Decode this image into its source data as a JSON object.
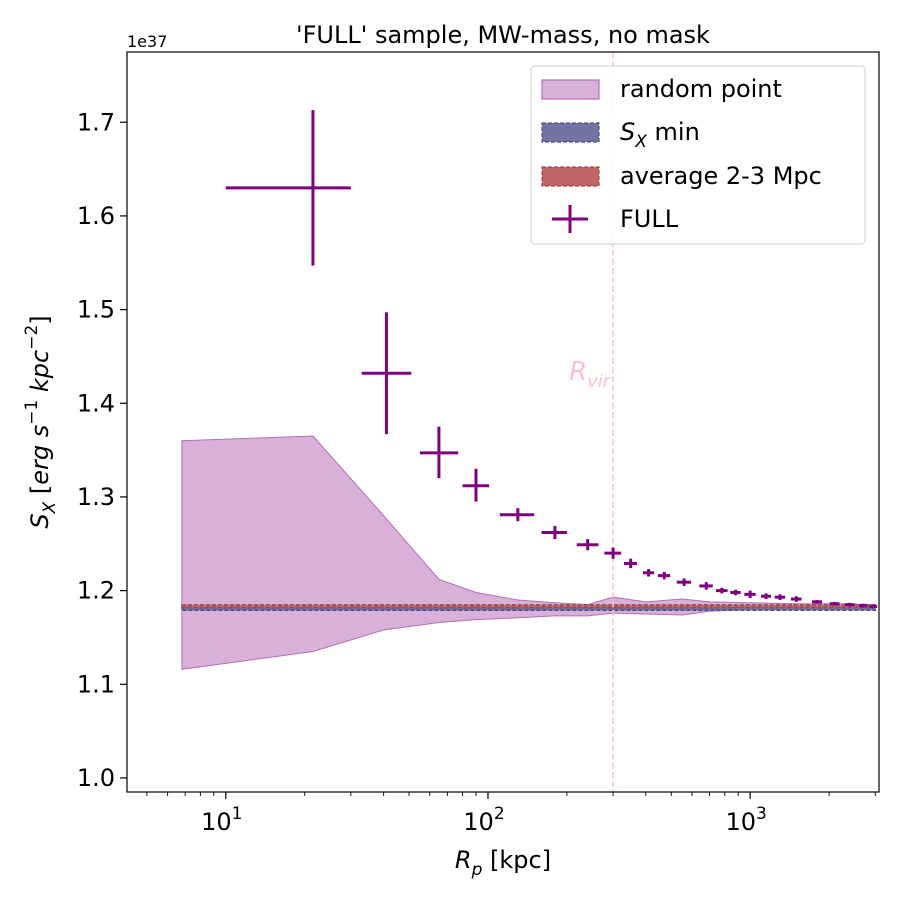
{
  "chart_data": {
    "type": "scatter",
    "title": "'FULL' sample, MW-mass, no mask",
    "xlabel": "R_p [kpc]",
    "ylabel": "S_X [erg s^-1 kpc^-2]",
    "x_scale": "log",
    "xlim": [
      4.2,
      3100
    ],
    "ylim": [
      0.985,
      1.775
    ],
    "y_offset_text": "1e37",
    "xticks": [
      {
        "value": 10,
        "base": "10",
        "exp": "1"
      },
      {
        "value": 100,
        "base": "10",
        "exp": "2"
      },
      {
        "value": 1000,
        "base": "10",
        "exp": "3"
      }
    ],
    "yticks": [
      {
        "value": 1.0,
        "label": "1.0"
      },
      {
        "value": 1.1,
        "label": "1.1"
      },
      {
        "value": 1.2,
        "label": "1.2"
      },
      {
        "value": 1.3,
        "label": "1.3"
      },
      {
        "value": 1.4,
        "label": "1.4"
      },
      {
        "value": 1.5,
        "label": "1.5"
      },
      {
        "value": 1.6,
        "label": "1.6"
      },
      {
        "value": 1.7,
        "label": "1.7"
      }
    ],
    "colors": {
      "full": "#800080",
      "random_fill": "#d8b0d8",
      "random_edge": "#b070b8",
      "sxmin_fill": "#7373a3",
      "sxmin_edge": "#4e4e86",
      "avg_fill": "#c06666",
      "avg_edge": "#a04848",
      "rvir": "#ffc0cb"
    },
    "legend": {
      "placement": "upper right",
      "entries": [
        {
          "kind": "band",
          "key": "random",
          "label": "random point"
        },
        {
          "kind": "band",
          "key": "sxmin",
          "label_var": "S",
          "label_sub": "X",
          "label_rest": " min"
        },
        {
          "kind": "band",
          "key": "avg",
          "label": "average 2-3 Mpc"
        },
        {
          "kind": "errorbar",
          "key": "full",
          "label": "FULL"
        }
      ]
    },
    "random_band": {
      "x": [
        6.8,
        21.5,
        40,
        65,
        90,
        130,
        180,
        240,
        300,
        400,
        550,
        700,
        1000,
        1500,
        2200,
        3000
      ],
      "lower": [
        1.116,
        1.135,
        1.158,
        1.166,
        1.169,
        1.171,
        1.173,
        1.173,
        1.176,
        1.175,
        1.174,
        1.178,
        1.18,
        1.18,
        1.181,
        1.181
      ],
      "upper": [
        1.36,
        1.365,
        1.28,
        1.212,
        1.198,
        1.19,
        1.187,
        1.185,
        1.193,
        1.188,
        1.191,
        1.188,
        1.187,
        1.186,
        1.186,
        1.185
      ]
    },
    "sxmin_band": {
      "x": [
        6.8,
        3000
      ],
      "lower": 1.179,
      "upper": 1.183
    },
    "avg_band": {
      "x": [
        6.8,
        3000
      ],
      "lower": 1.1818,
      "upper": 1.1848
    },
    "full_series": {
      "name": "FULL",
      "points": [
        {
          "x": 21.5,
          "y": 1.63,
          "xlo": 10.0,
          "xhi": 30.0,
          "ylo": 1.547,
          "yhi": 1.713
        },
        {
          "x": 41,
          "y": 1.432,
          "xlo": 33,
          "xhi": 51,
          "ylo": 1.367,
          "yhi": 1.497
        },
        {
          "x": 65,
          "y": 1.347,
          "xlo": 55,
          "xhi": 77,
          "ylo": 1.32,
          "yhi": 1.375
        },
        {
          "x": 90,
          "y": 1.312,
          "xlo": 80,
          "xhi": 101,
          "ylo": 1.295,
          "yhi": 1.33
        },
        {
          "x": 130,
          "y": 1.281,
          "xlo": 111,
          "xhi": 150,
          "ylo": 1.274,
          "yhi": 1.288
        },
        {
          "x": 180,
          "y": 1.262,
          "xlo": 160,
          "xhi": 200,
          "ylo": 1.255,
          "yhi": 1.269
        },
        {
          "x": 240,
          "y": 1.249,
          "xlo": 218,
          "xhi": 264,
          "ylo": 1.243,
          "yhi": 1.255
        },
        {
          "x": 300,
          "y": 1.24,
          "xlo": 278,
          "xhi": 322,
          "ylo": 1.234,
          "yhi": 1.246
        },
        {
          "x": 350,
          "y": 1.229,
          "xlo": 330,
          "xhi": 370,
          "ylo": 1.224,
          "yhi": 1.234
        },
        {
          "x": 410,
          "y": 1.219,
          "xlo": 390,
          "xhi": 430,
          "ylo": 1.215,
          "yhi": 1.223
        },
        {
          "x": 470,
          "y": 1.216,
          "xlo": 445,
          "xhi": 495,
          "ylo": 1.212,
          "yhi": 1.22
        },
        {
          "x": 560,
          "y": 1.209,
          "xlo": 525,
          "xhi": 595,
          "ylo": 1.205,
          "yhi": 1.213
        },
        {
          "x": 680,
          "y": 1.205,
          "xlo": 640,
          "xhi": 720,
          "ylo": 1.201,
          "yhi": 1.209
        },
        {
          "x": 780,
          "y": 1.2,
          "xlo": 740,
          "xhi": 820,
          "ylo": 1.197,
          "yhi": 1.203
        },
        {
          "x": 880,
          "y": 1.198,
          "xlo": 840,
          "xhi": 920,
          "ylo": 1.195,
          "yhi": 1.201
        },
        {
          "x": 1000,
          "y": 1.196,
          "xlo": 950,
          "xhi": 1050,
          "ylo": 1.192,
          "yhi": 1.2
        },
        {
          "x": 1150,
          "y": 1.194,
          "xlo": 1100,
          "xhi": 1200,
          "ylo": 1.191,
          "yhi": 1.197
        },
        {
          "x": 1300,
          "y": 1.193,
          "xlo": 1240,
          "xhi": 1360,
          "ylo": 1.19,
          "yhi": 1.196
        },
        {
          "x": 1500,
          "y": 1.191,
          "xlo": 1430,
          "xhi": 1570,
          "ylo": 1.188,
          "yhi": 1.194
        },
        {
          "x": 1800,
          "y": 1.188,
          "xlo": 1720,
          "xhi": 1880,
          "ylo": 1.186,
          "yhi": 1.19
        },
        {
          "x": 2100,
          "y": 1.186,
          "xlo": 2010,
          "xhi": 2190,
          "ylo": 1.184,
          "yhi": 1.188
        },
        {
          "x": 2400,
          "y": 1.185,
          "xlo": 2300,
          "xhi": 2500,
          "ylo": 1.183,
          "yhi": 1.187
        },
        {
          "x": 2700,
          "y": 1.184,
          "xlo": 2600,
          "xhi": 2800,
          "ylo": 1.182,
          "yhi": 1.186
        },
        {
          "x": 2950,
          "y": 1.183,
          "xlo": 2850,
          "xhi": 3050,
          "ylo": 1.181,
          "yhi": 1.185
        }
      ]
    },
    "rvir": {
      "x": 300,
      "label_var": "R",
      "label_sub": "vir",
      "label_y": 1.425
    }
  }
}
